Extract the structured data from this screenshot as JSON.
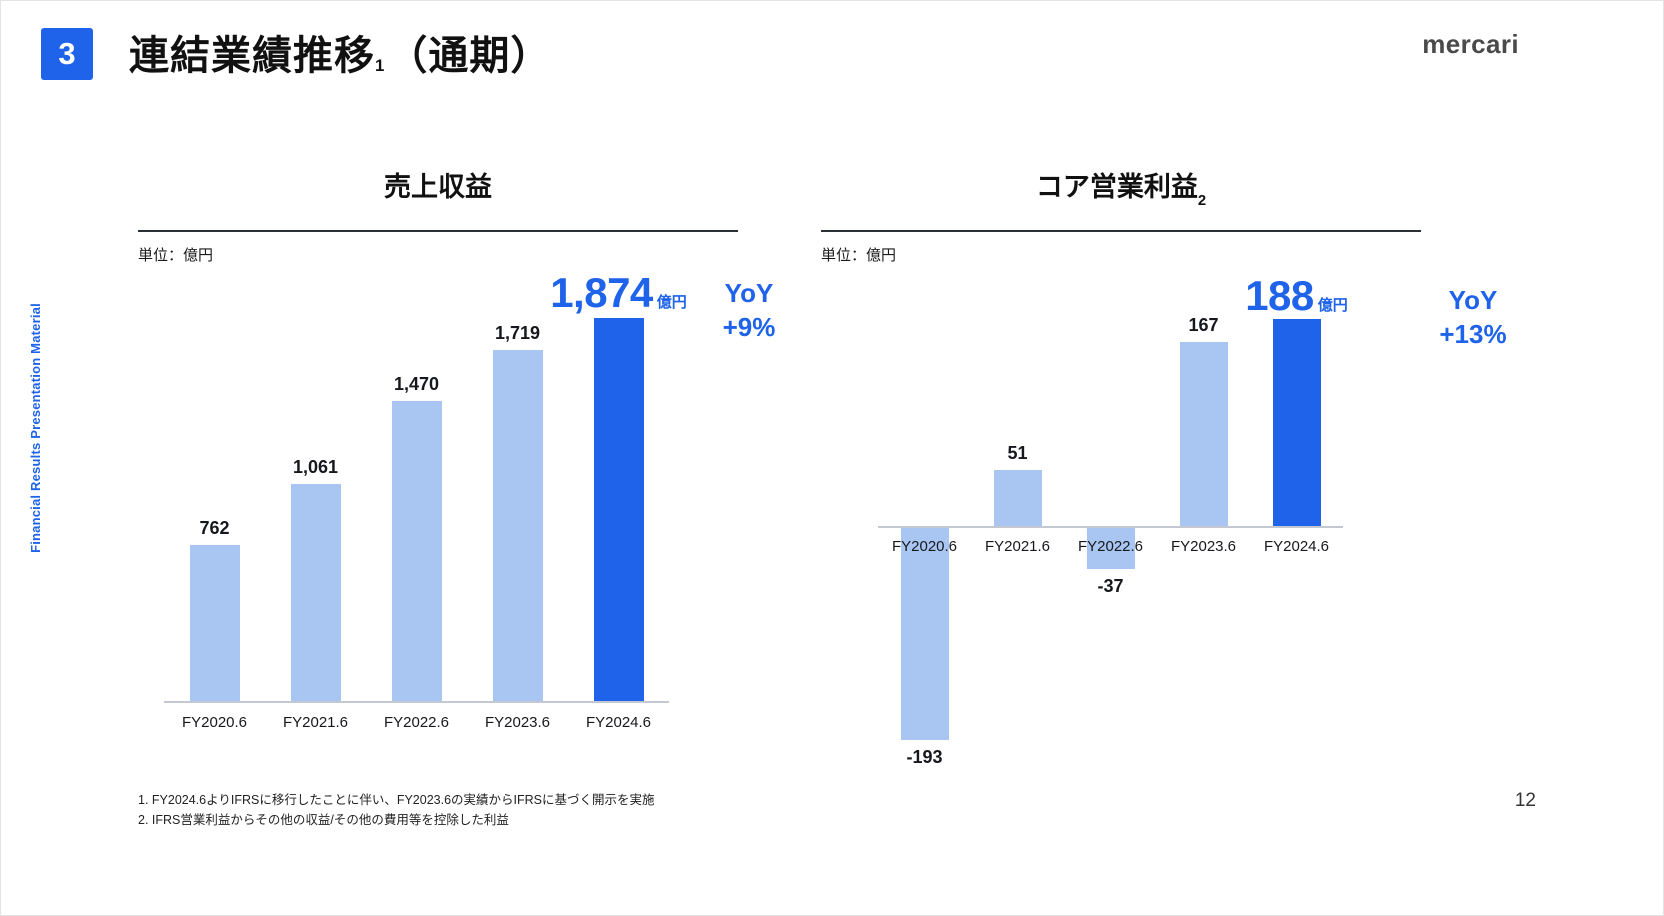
{
  "slide": {
    "number": "3",
    "title": "連結業績推移",
    "title_sub": "1",
    "title_suffix": "（通期）",
    "logo": "mercari",
    "side_label": "Financial Results Presentation Material",
    "page_number": "12",
    "footnotes": [
      "1. FY2024.6よりIFRSに移行したことに伴い、FY2023.6の実績からIFRSに基づく開示を実施",
      "2. IFRS営業利益からその他の収益/その他の費用等を控除した利益"
    ]
  },
  "colors": {
    "accent_blue": "#1E63E9",
    "light_blue": "#A9C6F3",
    "bar_highlight": "#1E63E9"
  },
  "chart_data": [
    {
      "type": "bar",
      "title": "売上収益",
      "title_sub": "",
      "unit_label": "単位：億円",
      "categories": [
        "FY2020.6",
        "FY2021.6",
        "FY2022.6",
        "FY2023.6",
        "FY2024.6"
      ],
      "values": [
        762,
        1061,
        1470,
        1719,
        1874
      ],
      "value_labels": [
        "762",
        "1,061",
        "1,470",
        "1,719",
        "1,874"
      ],
      "highlight_index": 4,
      "highlight_unit": "億円",
      "yoy_label": "YoY",
      "yoy_value": "+9%",
      "xlabel": "",
      "ylabel": "億円",
      "ylim": [
        0,
        2050
      ],
      "grid": false,
      "legend": false
    },
    {
      "type": "bar",
      "title": "コア営業利益",
      "title_sub": "2",
      "unit_label": "単位：億円",
      "categories": [
        "FY2020.6",
        "FY2021.6",
        "FY2022.6",
        "FY2023.6",
        "FY2024.6"
      ],
      "values": [
        -193,
        51,
        -37,
        167,
        188
      ],
      "value_labels": [
        "-193",
        "51",
        "-37",
        "167",
        "188"
      ],
      "highlight_index": 4,
      "highlight_unit": "億円",
      "yoy_label": "YoY",
      "yoy_value": "+13%",
      "xlabel": "",
      "ylabel": "億円",
      "ylim": [
        -230,
        230
      ],
      "grid": false,
      "legend": false
    }
  ]
}
